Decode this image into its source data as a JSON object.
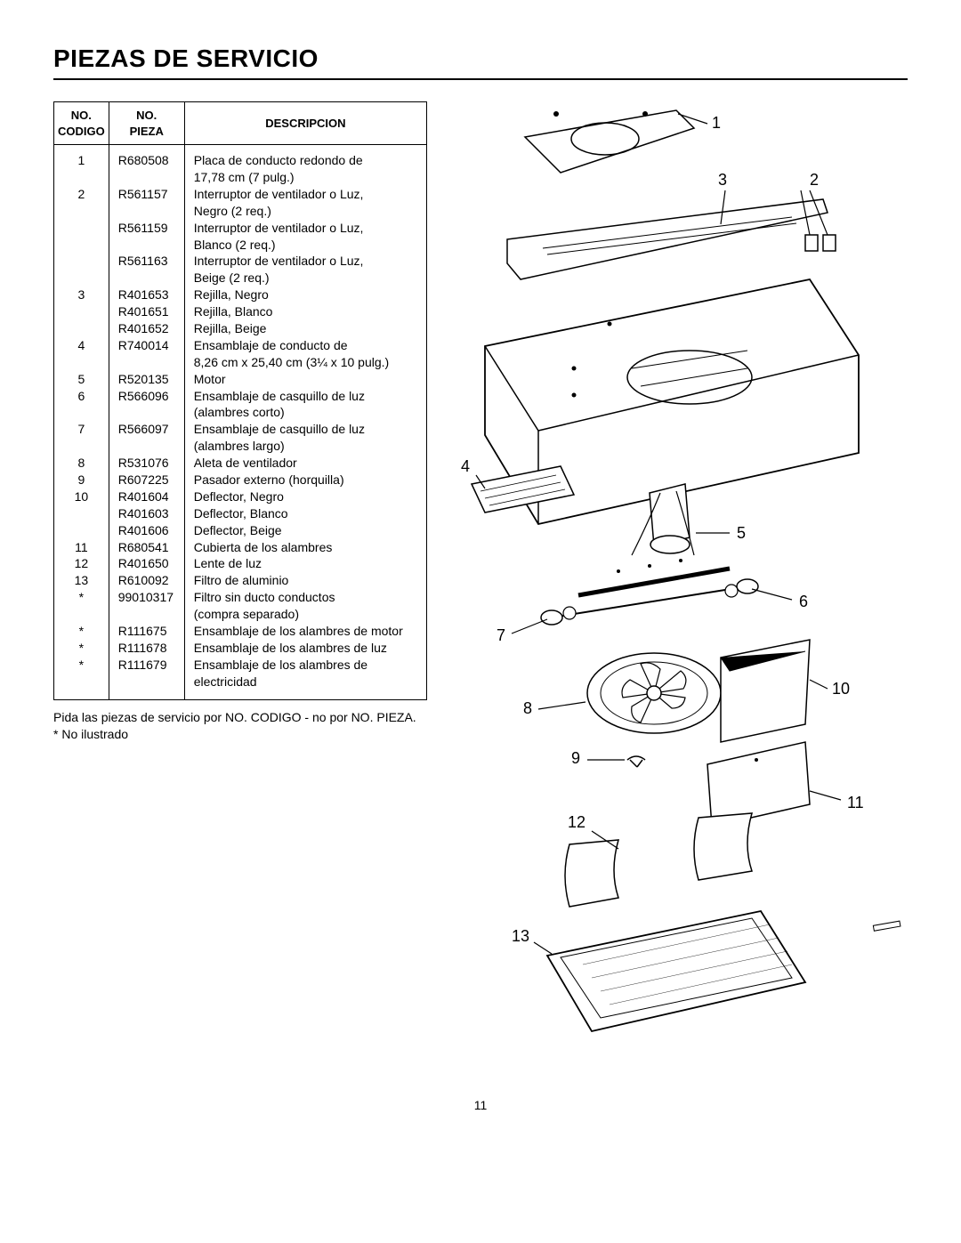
{
  "title": "PIEZAS DE SERVICIO",
  "columns": {
    "codigo": "NO.\nCODIGO",
    "pieza": "NO.\nPIEZA",
    "desc": "DESCRIPCION"
  },
  "rows": [
    {
      "codigo": "1",
      "pieza": "R680508",
      "desc": "Placa de conducto redondo de\n17,78 cm (7 pulg.)"
    },
    {
      "codigo": "2",
      "pieza": "R561157",
      "desc": "Interruptor de ventilador o Luz,\nNegro (2 req.)"
    },
    {
      "codigo": "",
      "pieza": "R561159",
      "desc": "Interruptor de ventilador o Luz,\nBlanco (2 req.)"
    },
    {
      "codigo": "",
      "pieza": "R561163",
      "desc": "Interruptor de ventilador o Luz,\nBeige (2 req.)"
    },
    {
      "codigo": "3",
      "pieza": "R401653",
      "desc": "Rejilla, Negro"
    },
    {
      "codigo": "",
      "pieza": "R401651",
      "desc": "Rejilla, Blanco"
    },
    {
      "codigo": "",
      "pieza": "R401652",
      "desc": "Rejilla, Beige"
    },
    {
      "codigo": "4",
      "pieza": "R740014",
      "desc": "Ensamblaje de conducto de\n8,26 cm x 25,40 cm (3¼ x 10 pulg.)"
    },
    {
      "codigo": "5",
      "pieza": "R520135",
      "desc": "Motor"
    },
    {
      "codigo": "6",
      "pieza": "R566096",
      "desc": "Ensamblaje de casquillo de luz\n(alambres corto)"
    },
    {
      "codigo": "7",
      "pieza": "R566097",
      "desc": "Ensamblaje de casquillo de luz\n(alambres largo)"
    },
    {
      "codigo": "8",
      "pieza": "R531076",
      "desc": "Aleta de ventilador"
    },
    {
      "codigo": "9",
      "pieza": "R607225",
      "desc": "Pasador externo (horquilla)"
    },
    {
      "codigo": "10",
      "pieza": "R401604",
      "desc": "Deflector, Negro"
    },
    {
      "codigo": "",
      "pieza": "R401603",
      "desc": "Deflector, Blanco"
    },
    {
      "codigo": "",
      "pieza": "R401606",
      "desc": "Deflector, Beige"
    },
    {
      "codigo": "11",
      "pieza": "R680541",
      "desc": "Cubierta de los alambres"
    },
    {
      "codigo": "12",
      "pieza": "R401650",
      "desc": "Lente de luz"
    },
    {
      "codigo": "13",
      "pieza": "R610092",
      "desc": "Filtro de aluminio"
    },
    {
      "codigo": "*",
      "pieza": "99010317",
      "desc": "Filtro sin ducto conductos\n(compra separado)"
    },
    {
      "codigo": "*",
      "pieza": "R111675",
      "desc": "Ensamblaje de los alambres de motor"
    },
    {
      "codigo": "*",
      "pieza": "R111678",
      "desc": "Ensamblaje de los alambres de luz"
    },
    {
      "codigo": "*",
      "pieza": "R111679",
      "desc": "Ensamblaje de los alambres de\nelectricidad"
    }
  ],
  "note1": "Pida las piezas de servicio por NO. CODIGO - no por NO. PIEZA.",
  "note2": "* No ilustrado",
  "pagefoot": "11",
  "callouts": {
    "c1": "1",
    "c2": "2",
    "c3": "3",
    "c4": "4",
    "c5": "5",
    "c6": "6",
    "c7": "7",
    "c8": "8",
    "c9": "9",
    "c10": "10",
    "c11": "11",
    "c12": "12",
    "c13": "13"
  }
}
